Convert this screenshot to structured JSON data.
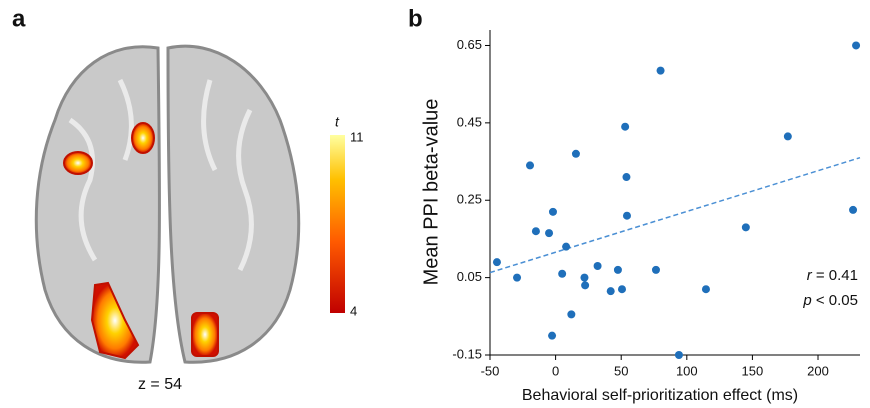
{
  "brain_panel": {
    "label": "a",
    "caption": "z = 54",
    "colorbar": {
      "title": "t",
      "max": 11,
      "min": 4
    }
  },
  "chart_data": {
    "type": "scatter",
    "panel_label": "b",
    "x_label": "Behavioral self-prioritization effect (ms)",
    "y_label": "Mean PPI beta-value",
    "xlim": [
      -50,
      232
    ],
    "ylim": [
      -0.15,
      0.69
    ],
    "xticks": [
      -50,
      0,
      50,
      100,
      150,
      200
    ],
    "yticks": [
      -0.15,
      0.05,
      0.25,
      0.45,
      0.65
    ],
    "series": [
      {
        "color": "#1f6fba",
        "x": [
          -44.7,
          -29.4,
          -19.5,
          -15,
          -5,
          -2,
          5,
          8,
          12,
          -2.7,
          15.5,
          22,
          22.5,
          32,
          42,
          47.5,
          50.6,
          53,
          54,
          54.4,
          76.5,
          80,
          94,
          114.6,
          145,
          177,
          226.7,
          229
        ],
        "values": [
          0.09,
          0.05,
          0.34,
          0.17,
          0.165,
          0.22,
          0.06,
          0.13,
          -0.045,
          -0.1,
          0.37,
          0.05,
          0.03,
          0.08,
          0.015,
          0.07,
          0.02,
          0.44,
          0.31,
          0.21,
          0.07,
          0.585,
          -0.15,
          0.02,
          0.18,
          0.415,
          0.225,
          0.65
        ]
      }
    ],
    "trend_line": {
      "color": "#4a8fd4",
      "x": [
        -50,
        232
      ],
      "values": [
        0.063,
        0.36
      ]
    },
    "annotations": [
      {
        "symbol": "r",
        "text": " = 0.41"
      },
      {
        "symbol": "p",
        "text": " < 0.05"
      }
    ]
  }
}
